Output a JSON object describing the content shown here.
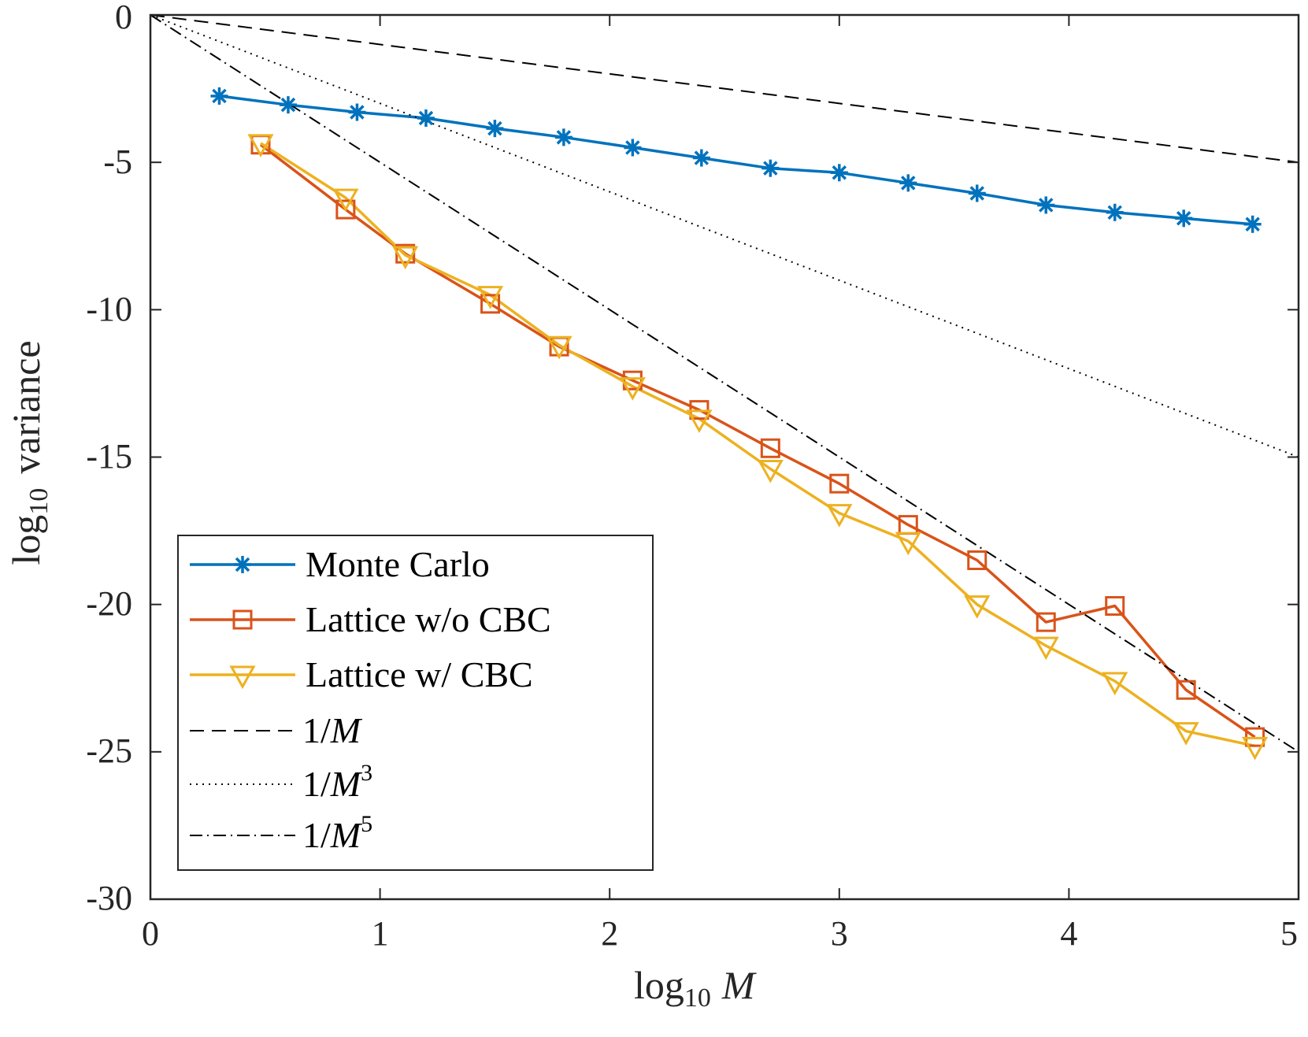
{
  "chart_data": {
    "type": "line",
    "xlabel": {
      "prefix": "log",
      "sub": "10",
      "var": "M"
    },
    "ylabel": {
      "prefix": "log",
      "sub": "10",
      "suffix": "variance"
    },
    "xlim": [
      0,
      5
    ],
    "ylim": [
      -30,
      0
    ],
    "xticks": [
      0,
      1,
      2,
      3,
      4,
      5
    ],
    "yticks": [
      0,
      -5,
      -10,
      -15,
      -20,
      -25,
      -30
    ],
    "xtick_labels": [
      "0",
      "1",
      "2",
      "3",
      "4",
      "5"
    ],
    "ytick_labels": [
      "0",
      "-5",
      "-10",
      "-15",
      "-20",
      "-25",
      "-30"
    ],
    "grid": false,
    "legend_position": "bottom-left",
    "series": [
      {
        "name": "Monte Carlo",
        "color": "#0072BD",
        "marker": "asterisk",
        "x": [
          0.3,
          0.6,
          0.9,
          1.2,
          1.5,
          1.8,
          2.1,
          2.4,
          2.7,
          3.0,
          3.3,
          3.6,
          3.9,
          4.2,
          4.5,
          4.8
        ],
        "y": [
          -2.75,
          -3.05,
          -3.3,
          -3.5,
          -3.85,
          -4.15,
          -4.5,
          -4.85,
          -5.2,
          -5.35,
          -5.7,
          -6.05,
          -6.45,
          -6.7,
          -6.9,
          -7.1
        ]
      },
      {
        "name": "Lattice w/o CBC",
        "color": "#D95319",
        "marker": "square",
        "x": [
          0.48,
          0.85,
          1.11,
          1.48,
          1.78,
          2.1,
          2.39,
          2.7,
          3.0,
          3.3,
          3.6,
          3.9,
          4.2,
          4.51,
          4.81
        ],
        "y": [
          -4.4,
          -6.6,
          -8.1,
          -9.8,
          -11.25,
          -12.4,
          -13.4,
          -14.7,
          -15.9,
          -17.3,
          -18.5,
          -20.6,
          -20.05,
          -22.9,
          -24.5
        ]
      },
      {
        "name": "Lattice w/ CBC",
        "color": "#EDB120",
        "marker": "triangle-down",
        "x": [
          0.48,
          0.85,
          1.11,
          1.48,
          1.78,
          2.1,
          2.39,
          2.7,
          3.0,
          3.3,
          3.6,
          3.9,
          4.2,
          4.51,
          4.81
        ],
        "y": [
          -4.35,
          -6.2,
          -8.15,
          -9.5,
          -11.2,
          -12.6,
          -13.7,
          -15.4,
          -16.9,
          -17.85,
          -20.0,
          -21.4,
          -22.6,
          -24.3,
          -24.8
        ]
      },
      {
        "name": "1/M",
        "color": "#000000",
        "linestyle": "dashed",
        "slope": -1,
        "x": [
          0,
          5
        ],
        "y": [
          0,
          -5
        ]
      },
      {
        "name": "1/M^3",
        "color": "#000000",
        "linestyle": "dotted",
        "slope": -3,
        "x": [
          0,
          5
        ],
        "y": [
          0,
          -15
        ]
      },
      {
        "name": "1/M^5",
        "color": "#000000",
        "linestyle": "dashdot",
        "slope": -5,
        "x": [
          0,
          5
        ],
        "y": [
          0,
          -25
        ]
      }
    ],
    "legend_labels": {
      "monte_carlo": "Monte Carlo",
      "lattice_wo": "Lattice w/o CBC",
      "lattice_w": "Lattice w/ CBC",
      "one_over": "1/",
      "var": "M",
      "exp3": "3",
      "exp5": "5"
    }
  }
}
